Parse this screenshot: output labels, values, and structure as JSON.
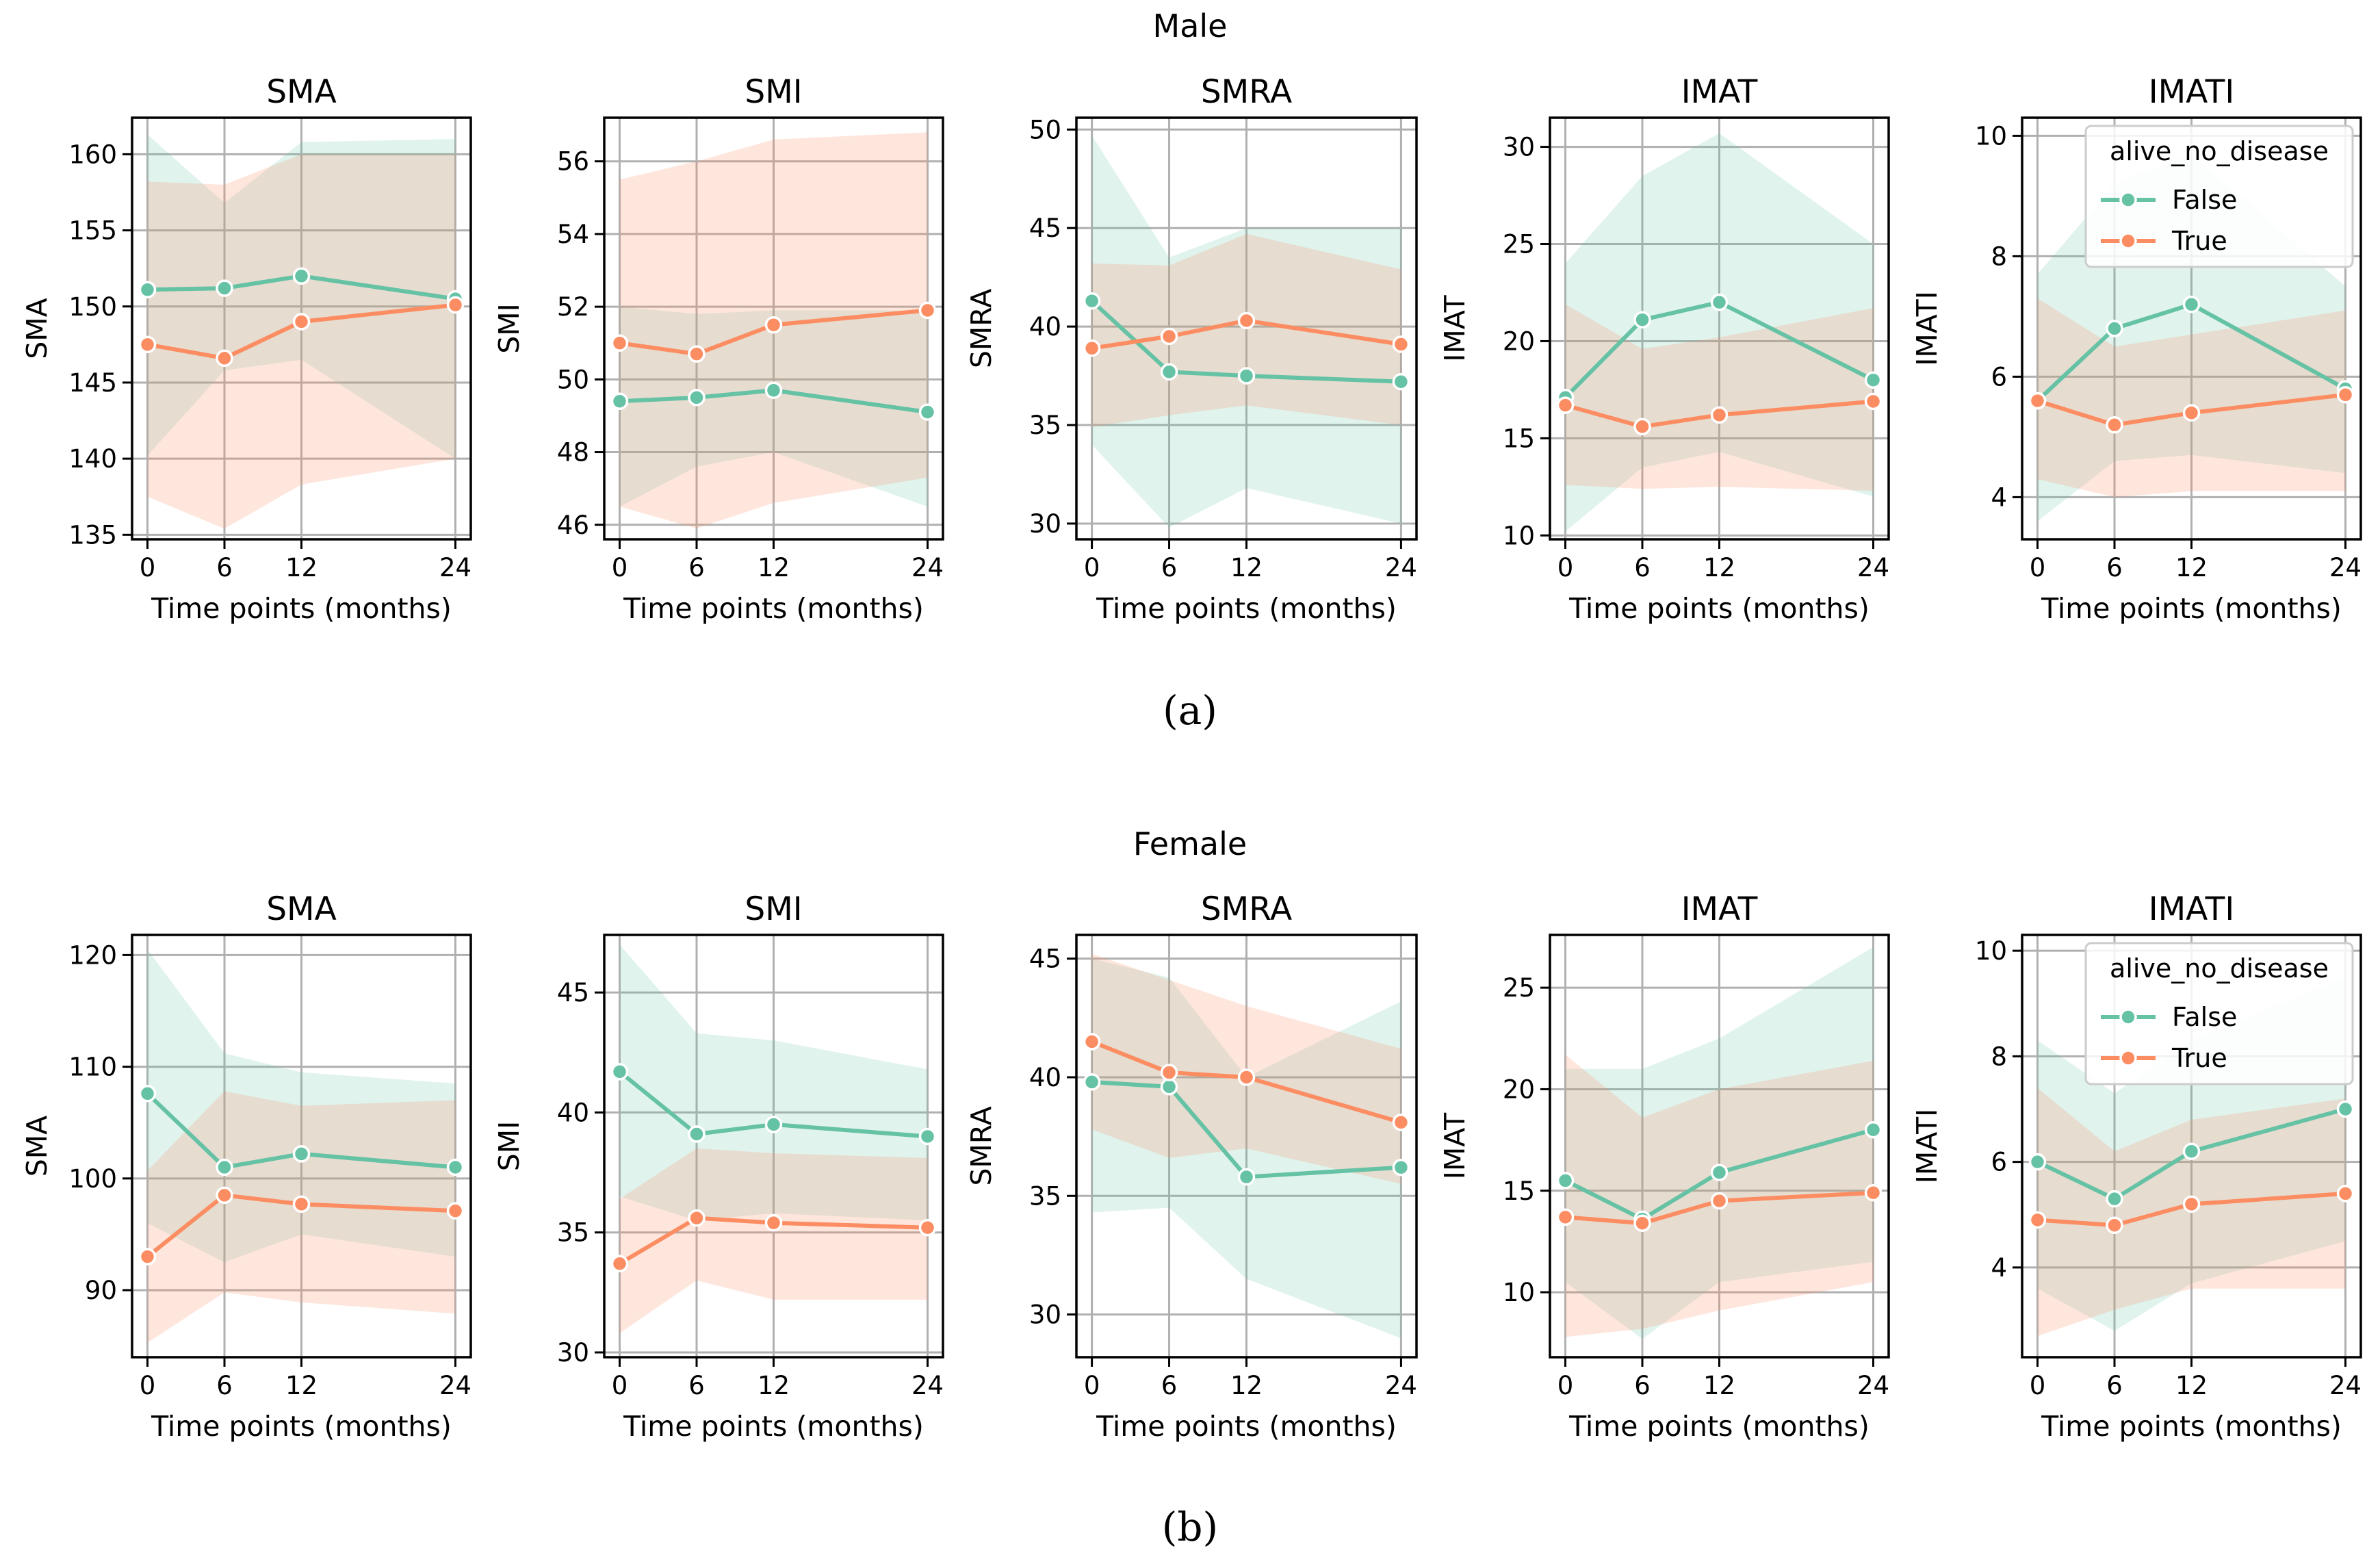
{
  "chart_data": [
    {
      "group_title": "Male",
      "caption": "(a)",
      "type": "line",
      "panels": [
        {
          "title": "SMA",
          "xlabel": "Time points (months)",
          "ylabel": "SMA",
          "x": [
            0,
            6,
            12,
            24
          ],
          "xlim": [
            -1.2,
            25.2
          ],
          "ylim": [
            134.7,
            162.4
          ],
          "yticks": [
            135,
            140,
            145,
            150,
            155,
            160
          ],
          "series": [
            {
              "name": "False",
              "values": [
                151.1,
                151.2,
                152.0,
                150.5
              ],
              "ci_low": [
                140.2,
                145.8,
                146.5,
                140.0
              ],
              "ci_high": [
                161.3,
                156.8,
                160.8,
                161.0
              ]
            },
            {
              "name": "True",
              "values": [
                147.5,
                146.6,
                149.0,
                150.1
              ],
              "ci_low": [
                137.5,
                135.4,
                138.3,
                140.0
              ],
              "ci_high": [
                158.2,
                158.0,
                160.0,
                160.0
              ]
            }
          ]
        },
        {
          "title": "SMI",
          "xlabel": "Time points (months)",
          "ylabel": "SMI",
          "x": [
            0,
            6,
            12,
            24
          ],
          "xlim": [
            -1.2,
            25.2
          ],
          "ylim": [
            45.6,
            57.2
          ],
          "yticks": [
            46,
            48,
            50,
            52,
            54,
            56
          ],
          "series": [
            {
              "name": "False",
              "values": [
                49.4,
                49.5,
                49.7,
                49.1
              ],
              "ci_low": [
                46.5,
                47.6,
                48.0,
                46.5
              ],
              "ci_high": [
                52.0,
                51.8,
                51.9,
                51.9
              ]
            },
            {
              "name": "True",
              "values": [
                51.0,
                50.7,
                51.5,
                51.9
              ],
              "ci_low": [
                46.5,
                45.9,
                46.6,
                47.3
              ],
              "ci_high": [
                55.5,
                56.0,
                56.6,
                56.8
              ]
            }
          ]
        },
        {
          "title": "SMRA",
          "xlabel": "Time points (months)",
          "ylabel": "SMRA",
          "x": [
            0,
            6,
            12,
            24
          ],
          "xlim": [
            -1.2,
            25.2
          ],
          "ylim": [
            29.2,
            50.6
          ],
          "yticks": [
            30,
            35,
            40,
            45,
            50
          ],
          "series": [
            {
              "name": "False",
              "values": [
                41.3,
                37.7,
                37.5,
                37.2
              ],
              "ci_low": [
                34.0,
                29.8,
                31.8,
                30.0
              ],
              "ci_high": [
                49.7,
                43.5,
                45.0,
                45.0
              ]
            },
            {
              "name": "True",
              "values": [
                38.9,
                39.5,
                40.3,
                39.1
              ],
              "ci_low": [
                34.9,
                35.5,
                36.0,
                35.0
              ],
              "ci_high": [
                43.2,
                43.1,
                44.7,
                42.9
              ]
            }
          ]
        },
        {
          "title": "IMAT",
          "xlabel": "Time points (months)",
          "ylabel": "IMAT",
          "x": [
            0,
            6,
            12,
            24
          ],
          "xlim": [
            -1.2,
            25.2
          ],
          "ylim": [
            9.8,
            31.5
          ],
          "yticks": [
            10,
            15,
            20,
            25,
            30
          ],
          "series": [
            {
              "name": "False",
              "values": [
                17.1,
                21.1,
                22.0,
                18.0
              ],
              "ci_low": [
                10.2,
                13.5,
                14.3,
                12.0
              ],
              "ci_high": [
                24.0,
                28.5,
                30.7,
                25.0
              ]
            },
            {
              "name": "True",
              "values": [
                16.7,
                15.6,
                16.2,
                16.9
              ],
              "ci_low": [
                12.6,
                12.4,
                12.5,
                12.3
              ],
              "ci_high": [
                21.9,
                19.6,
                20.2,
                21.7
              ]
            }
          ]
        },
        {
          "title": "IMATI",
          "xlabel": "Time points (months)",
          "ylabel": "IMATI",
          "x": [
            0,
            6,
            12,
            24
          ],
          "xlim": [
            -1.2,
            25.2
          ],
          "ylim": [
            3.3,
            10.3
          ],
          "yticks": [
            4,
            6,
            8,
            10
          ],
          "series": [
            {
              "name": "False",
              "values": [
                5.6,
                6.8,
                7.2,
                5.8
              ],
              "ci_low": [
                3.6,
                4.6,
                4.7,
                4.4
              ],
              "ci_high": [
                7.7,
                9.2,
                9.7,
                7.5
              ]
            },
            {
              "name": "True",
              "values": [
                5.6,
                5.2,
                5.4,
                5.7
              ],
              "ci_low": [
                4.3,
                4.0,
                4.1,
                4.1
              ],
              "ci_high": [
                7.3,
                6.5,
                6.7,
                7.1
              ]
            }
          ],
          "legend": {
            "title": "alive_no_disease",
            "entries": [
              "False",
              "True"
            ],
            "placement": "upper-right"
          }
        }
      ]
    },
    {
      "group_title": "Female",
      "caption": "(b)",
      "type": "line",
      "panels": [
        {
          "title": "SMA",
          "xlabel": "Time points (months)",
          "ylabel": "SMA",
          "x": [
            0,
            6,
            12,
            24
          ],
          "xlim": [
            -1.2,
            25.2
          ],
          "ylim": [
            84.0,
            121.8
          ],
          "yticks": [
            90,
            100,
            110,
            120
          ],
          "series": [
            {
              "name": "False",
              "values": [
                107.6,
                101.0,
                102.2,
                101.0
              ],
              "ci_low": [
                96.0,
                92.5,
                95.0,
                93.0
              ],
              "ci_high": [
                120.5,
                111.2,
                109.5,
                108.5
              ]
            },
            {
              "name": "True",
              "values": [
                93.0,
                98.5,
                97.7,
                97.1
              ],
              "ci_low": [
                85.3,
                89.8,
                88.9,
                87.9
              ],
              "ci_high": [
                100.7,
                107.8,
                106.5,
                107.0
              ]
            }
          ]
        },
        {
          "title": "SMI",
          "xlabel": "Time points (months)",
          "ylabel": "SMI",
          "x": [
            0,
            6,
            12,
            24
          ],
          "xlim": [
            -1.2,
            25.2
          ],
          "ylim": [
            29.8,
            47.4
          ],
          "yticks": [
            30,
            35,
            40,
            45
          ],
          "series": [
            {
              "name": "False",
              "values": [
                41.7,
                39.1,
                39.5,
                39.0
              ],
              "ci_low": [
                36.5,
                35.5,
                35.8,
                35.5
              ],
              "ci_high": [
                47.0,
                43.3,
                43.0,
                41.8
              ]
            },
            {
              "name": "True",
              "values": [
                33.7,
                35.6,
                35.4,
                35.2
              ],
              "ci_low": [
                30.8,
                33.0,
                32.2,
                32.2
              ],
              "ci_high": [
                36.4,
                38.5,
                38.3,
                38.1
              ]
            }
          ]
        },
        {
          "title": "SMRA",
          "xlabel": "Time points (months)",
          "ylabel": "SMRA",
          "x": [
            0,
            6,
            12,
            24
          ],
          "xlim": [
            -1.2,
            25.2
          ],
          "ylim": [
            28.2,
            46.0
          ],
          "yticks": [
            30,
            35,
            40,
            45
          ],
          "series": [
            {
              "name": "False",
              "values": [
                39.8,
                39.6,
                35.8,
                36.2
              ],
              "ci_low": [
                34.3,
                34.5,
                31.5,
                29.0
              ],
              "ci_high": [
                45.0,
                44.2,
                40.0,
                43.2
              ]
            },
            {
              "name": "True",
              "values": [
                41.5,
                40.2,
                40.0,
                38.1
              ],
              "ci_low": [
                37.8,
                36.6,
                37.0,
                35.5
              ],
              "ci_high": [
                45.2,
                44.1,
                43.0,
                41.2
              ]
            }
          ]
        },
        {
          "title": "IMAT",
          "xlabel": "Time points (months)",
          "ylabel": "IMAT",
          "x": [
            0,
            6,
            12,
            24
          ],
          "xlim": [
            -1.2,
            25.2
          ],
          "ylim": [
            6.8,
            27.6
          ],
          "yticks": [
            10,
            15,
            20,
            25
          ],
          "series": [
            {
              "name": "False",
              "values": [
                15.5,
                13.6,
                15.9,
                18.0
              ],
              "ci_low": [
                10.5,
                7.7,
                10.5,
                11.5
              ],
              "ci_high": [
                21.0,
                21.0,
                22.5,
                27.0
              ]
            },
            {
              "name": "True",
              "values": [
                13.7,
                13.4,
                14.5,
                14.9
              ],
              "ci_low": [
                7.8,
                8.2,
                9.1,
                10.5
              ],
              "ci_high": [
                21.7,
                18.6,
                20.0,
                21.4
              ]
            }
          ]
        },
        {
          "title": "IMATI",
          "xlabel": "Time points (months)",
          "ylabel": "IMATI",
          "x": [
            0,
            6,
            12,
            24
          ],
          "xlim": [
            -1.2,
            25.2
          ],
          "ylim": [
            2.3,
            10.3
          ],
          "yticks": [
            4,
            6,
            8,
            10
          ],
          "series": [
            {
              "name": "False",
              "values": [
                6.0,
                5.3,
                6.2,
                7.0
              ],
              "ci_low": [
                3.6,
                2.8,
                3.7,
                4.5
              ],
              "ci_high": [
                8.3,
                7.3,
                8.3,
                9.5
              ]
            },
            {
              "name": "True",
              "values": [
                4.9,
                4.8,
                5.2,
                5.4
              ],
              "ci_low": [
                2.7,
                3.2,
                3.6,
                3.6
              ],
              "ci_high": [
                7.4,
                6.2,
                6.8,
                7.2
              ]
            }
          ],
          "legend": {
            "title": "alive_no_disease",
            "entries": [
              "False",
              "True"
            ],
            "placement": "upper-right"
          }
        }
      ]
    }
  ],
  "colors": {
    "false_line": "#66c2a5",
    "true_line": "#fc8d62",
    "false_band": "#66c2a5",
    "true_band": "#fc8d62"
  }
}
